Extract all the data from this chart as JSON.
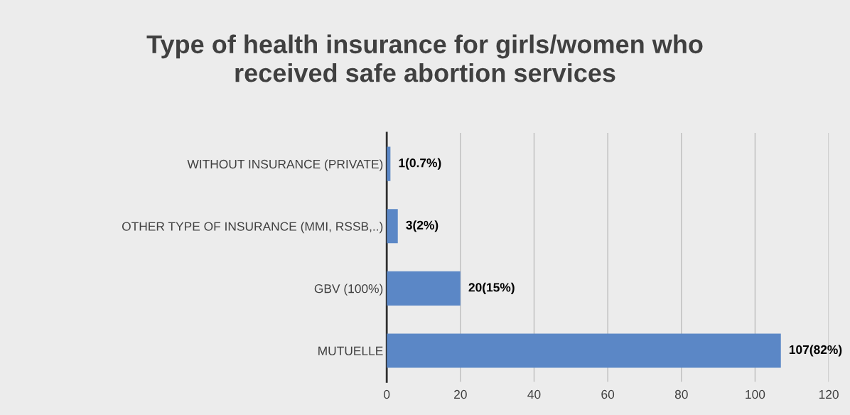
{
  "chart_data": {
    "type": "bar",
    "orientation": "horizontal",
    "title": "Type of health insurance for girls/women who\nreceived safe abortion services",
    "categories": [
      "WITHOUT INSURANCE (PRIVATE)",
      "OTHER TYPE OF INSURANCE (MMI, RSSB,..)",
      "GBV (100%)",
      "MUTUELLE"
    ],
    "values": [
      1,
      3,
      20,
      107
    ],
    "value_labels": [
      "1(0.7%)",
      "3(2%)",
      "20(15%)",
      "107(82%)"
    ],
    "color": "#5b87c6",
    "xlim": [
      0,
      120
    ],
    "xticks": [
      0,
      20,
      40,
      60,
      80,
      100,
      120
    ],
    "grid": "x"
  }
}
